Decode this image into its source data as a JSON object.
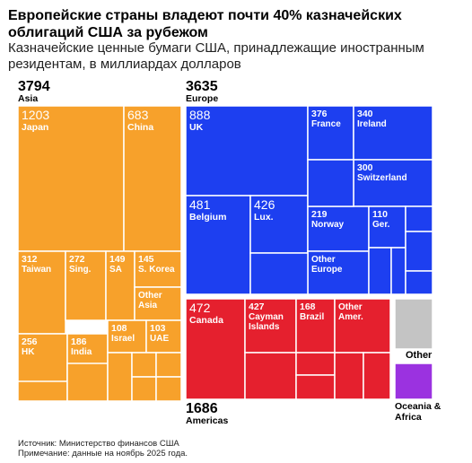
{
  "header": {
    "title": "Европейские страны владеют почти 40% казначейских облигаций США за рубежом",
    "subtitle": "Казначейские ценные бумаги США, принадлежащие иностранным резидентам, в миллиардах долларов"
  },
  "footer": {
    "source": "Источник: Министерство финансов США",
    "note": "Примечание: данные на ноябрь 2025 года."
  },
  "colors": {
    "Asia": "#f7a12b",
    "Europe": "#1d3ff0",
    "Americas": "#e5202e",
    "Other": "#c4c4c4",
    "Oceania & Africa": "#9b32e0"
  },
  "chart_data": {
    "type": "treemap",
    "groups": [
      {
        "name": "Asia",
        "value": 3794,
        "children": [
          {
            "label": "Japan",
            "value": 1203
          },
          {
            "label": "China",
            "value": 683
          },
          {
            "label": "Taiwan",
            "value": 312
          },
          {
            "label": "Sing.",
            "value": 272
          },
          {
            "label": "SA",
            "value": 149
          },
          {
            "label": "S. Korea",
            "value": 145
          },
          {
            "label": "Other Asia",
            "value": null
          },
          {
            "label": "HK",
            "value": 256
          },
          {
            "label": "India",
            "value": 186
          },
          {
            "label": "Israel",
            "value": 108
          },
          {
            "label": "UAE",
            "value": 103
          }
        ]
      },
      {
        "name": "Europe",
        "value": 3635,
        "children": [
          {
            "label": "UK",
            "value": 888
          },
          {
            "label": "France",
            "value": 376
          },
          {
            "label": "Ireland",
            "value": 340
          },
          {
            "label": "Switzerland",
            "value": 300
          },
          {
            "label": "Belgium",
            "value": 481
          },
          {
            "label": "Lux.",
            "value": 426
          },
          {
            "label": "Norway",
            "value": 219
          },
          {
            "label": "Ger.",
            "value": 110
          },
          {
            "label": "Other Europe",
            "value": null
          }
        ]
      },
      {
        "name": "Americas",
        "value": 1686,
        "children": [
          {
            "label": "Canada",
            "value": 472
          },
          {
            "label": "Cayman Islands",
            "value": 427
          },
          {
            "label": "Brazil",
            "value": 168
          },
          {
            "label": "Other Amer.",
            "value": null
          }
        ]
      },
      {
        "name": "Other",
        "value": null,
        "children": []
      },
      {
        "name": "Oceania & Africa",
        "value": null,
        "children": []
      }
    ]
  }
}
